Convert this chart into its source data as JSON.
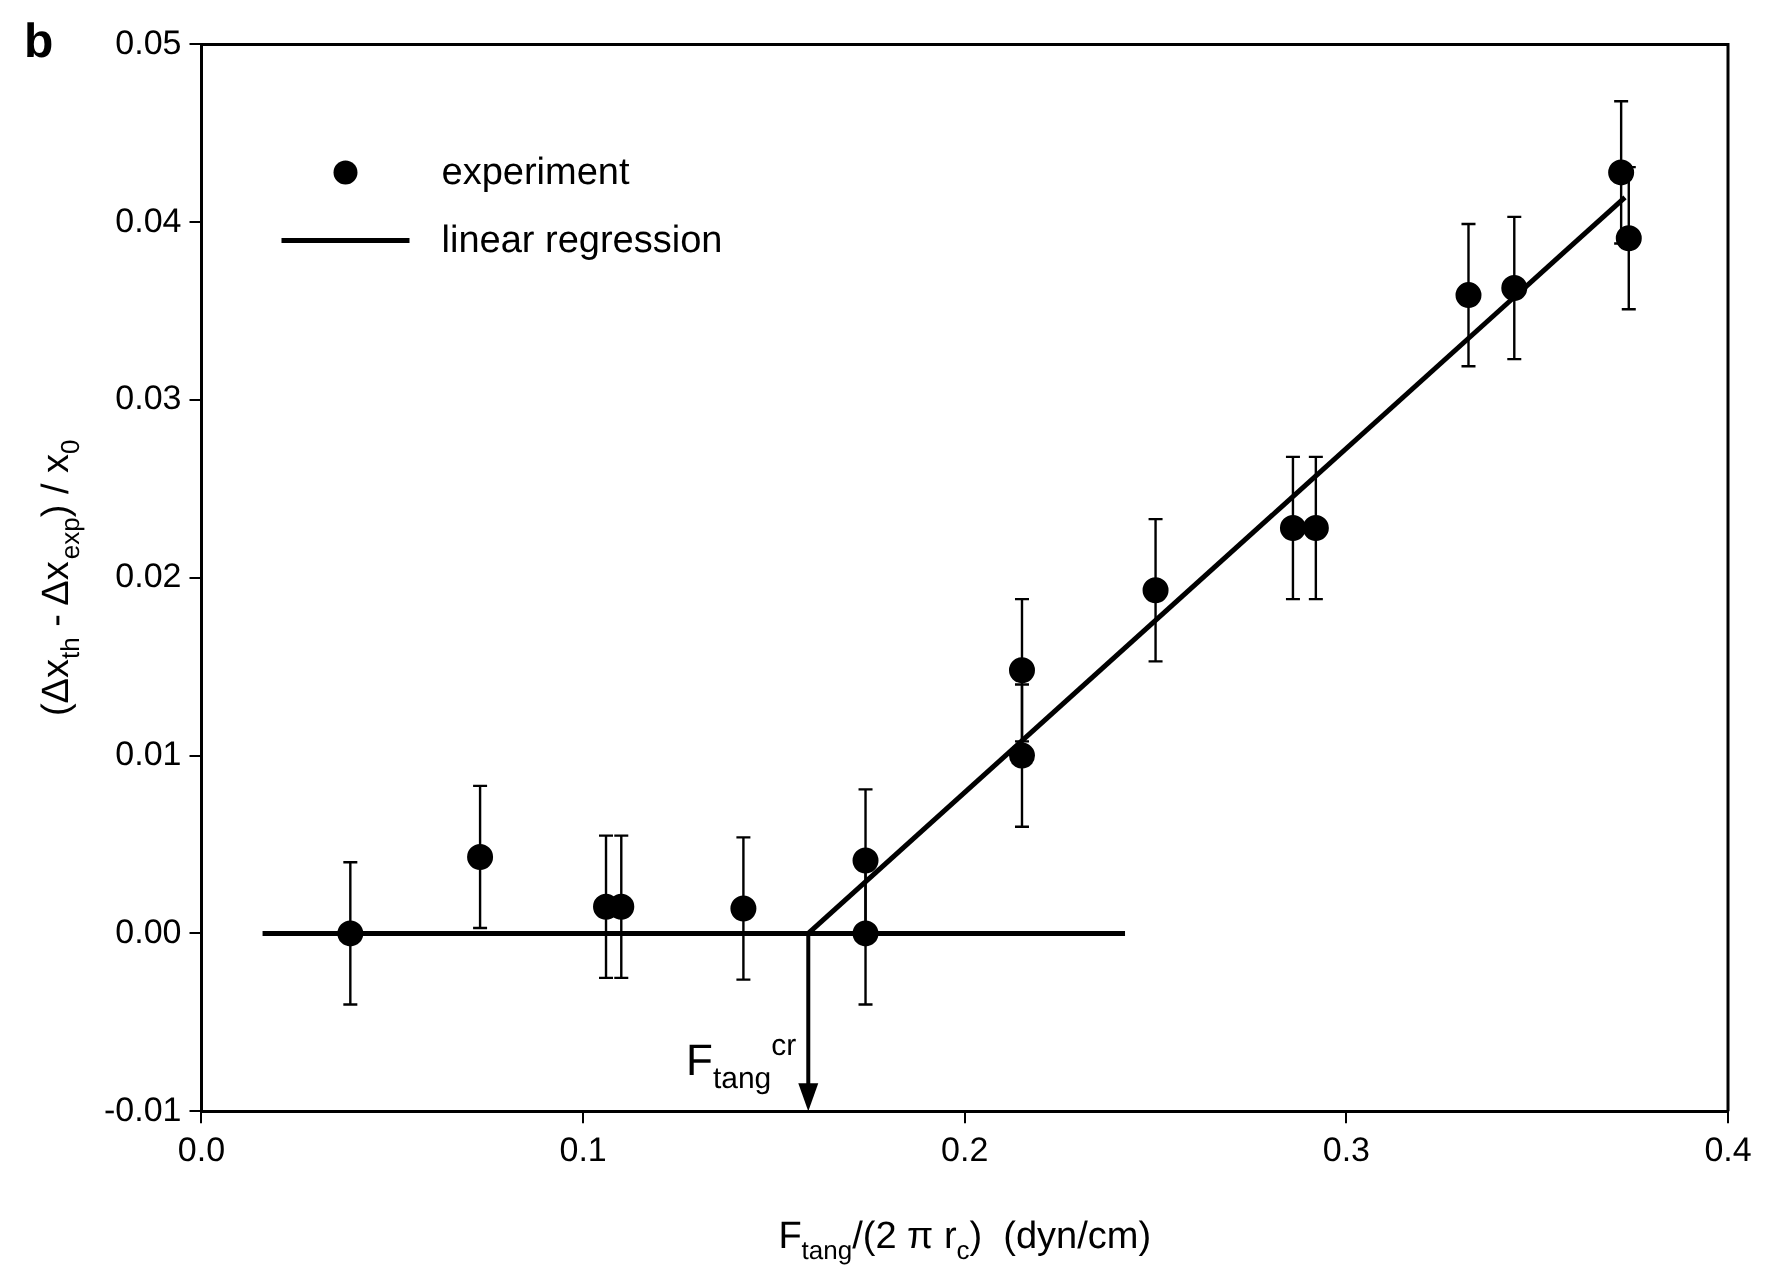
{
  "chart_data": {
    "type": "scatter",
    "xlabel": "F$_{tang}$/(2 π r$_{c}$)  (dyn/cm)",
    "ylabel": "(Δx$_{th}$ - Δx$_{exp}$) / x$_{0}$",
    "annotations": [
      "b",
      {
        "text": "F$_{tang}$$^{cr}$",
        "x": 0.159,
        "y": 0
      }
    ],
    "xlim": [
      0,
      0.4
    ],
    "xticks": [
      {
        "value": 0,
        "label": "0.0"
      },
      0.1,
      0.2,
      0.3,
      0.4
    ],
    "ylim": [
      -0.01,
      0.05
    ],
    "yticks": [
      -0.01,
      {
        "value": 0,
        "label": "0.00"
      },
      0.01,
      0.02,
      0.03,
      0.04,
      0.05
    ],
    "grid": false,
    "legend": "top left",
    "marker": "circle",
    "series": [
      {
        "name": "experiment",
        "color": "#000000",
        "x": [
          0.039,
          0.073,
          0.106,
          0.11,
          0.142,
          0.174,
          0.174,
          0.215,
          0.215,
          0.25,
          0.286,
          0.292,
          0.332,
          0.344,
          0.372,
          0.374
        ],
        "values": [
          0.0,
          0.0043,
          0.0015,
          0.0015,
          0.0014,
          0.0041,
          0.0,
          0.0148,
          0.01,
          0.0193,
          0.0228,
          0.0228,
          0.0359,
          0.0363,
          0.0428,
          0.0391
        ],
        "errors": [
          0.004,
          0.004,
          0.004,
          0.004,
          0.004,
          0.004,
          0.004,
          0.004,
          0.004,
          0.004,
          0.004,
          0.004,
          0.004,
          0.004,
          0.004,
          0.004
        ]
      },
      {
        "name": "linear regression",
        "type": "line",
        "marker": "none",
        "line_style": "solid",
        "color": "#000000",
        "x": [
          0.016,
          0.242
        ],
        "values": [
          0,
          0
        ]
      },
      {
        "type": "line",
        "marker": "none",
        "line_style": "solid",
        "color": "#000000",
        "x": [
          0.159,
          0.373
        ],
        "values": [
          0,
          0.0414
        ]
      }
    ]
  }
}
